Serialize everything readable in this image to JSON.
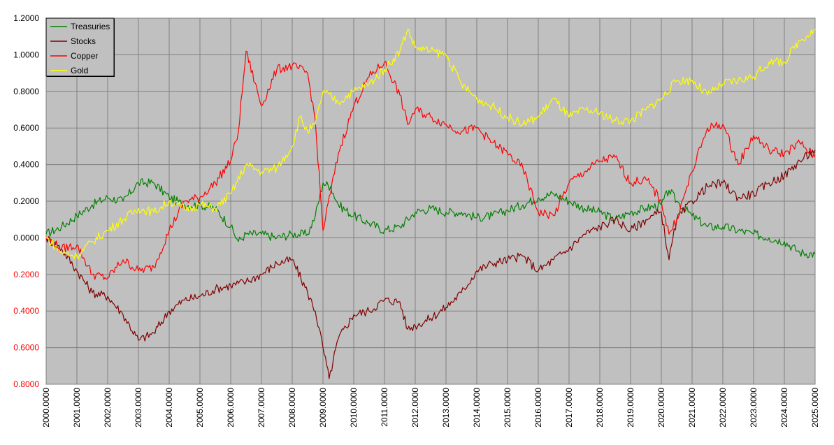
{
  "chart_data": {
    "type": "line",
    "ylim": [
      -0.8,
      1.2
    ],
    "xlim": [
      2000,
      2025
    ],
    "grid": true,
    "legend_placement": "top-left",
    "plot_background": "#c0c0c0",
    "y_ticks": [
      {
        "value": 1.2,
        "label": "1.2000",
        "color": "#000000"
      },
      {
        "value": 1.0,
        "label": "1.0000",
        "color": "#000000"
      },
      {
        "value": 0.8,
        "label": "0.8000",
        "color": "#000000"
      },
      {
        "value": 0.6,
        "label": "0.6000",
        "color": "#000000"
      },
      {
        "value": 0.4,
        "label": "0.4000",
        "color": "#000000"
      },
      {
        "value": 0.2,
        "label": "0.2000",
        "color": "#000000"
      },
      {
        "value": 0.0,
        "label": "0.0000",
        "color": "#000000"
      },
      {
        "value": -0.2,
        "label": "0.2000",
        "color": "#ff0000"
      },
      {
        "value": -0.4,
        "label": "0.4000",
        "color": "#ff0000"
      },
      {
        "value": -0.6,
        "label": "0.6000",
        "color": "#ff0000"
      },
      {
        "value": -0.8,
        "label": "0.8000",
        "color": "#ff0000"
      }
    ],
    "x_ticks": [
      {
        "value": 2000,
        "label": "2000.0000"
      },
      {
        "value": 2001,
        "label": "2001.0000"
      },
      {
        "value": 2002,
        "label": "2002.0000"
      },
      {
        "value": 2003,
        "label": "2003.0000"
      },
      {
        "value": 2004,
        "label": "2004.0000"
      },
      {
        "value": 2005,
        "label": "2005.0000"
      },
      {
        "value": 2006,
        "label": "2006.0000"
      },
      {
        "value": 2007,
        "label": "2007.0000"
      },
      {
        "value": 2008,
        "label": "2008.0000"
      },
      {
        "value": 2009,
        "label": "2009.0000"
      },
      {
        "value": 2010,
        "label": "2010.0000"
      },
      {
        "value": 2011,
        "label": "2011.0000"
      },
      {
        "value": 2012,
        "label": "2012.0000"
      },
      {
        "value": 2013,
        "label": "2013.0000"
      },
      {
        "value": 2014,
        "label": "2014.0000"
      },
      {
        "value": 2015,
        "label": "2015.0000"
      },
      {
        "value": 2016,
        "label": "2016.0000"
      },
      {
        "value": 2017,
        "label": "2017.0000"
      },
      {
        "value": 2018,
        "label": "2018.0000"
      },
      {
        "value": 2019,
        "label": "2019.0000"
      },
      {
        "value": 2020,
        "label": "2020.0000"
      },
      {
        "value": 2021,
        "label": "2021.0000"
      },
      {
        "value": 2022,
        "label": "2022.0000"
      },
      {
        "value": 2023,
        "label": "2023.0000"
      },
      {
        "value": 2024,
        "label": "2024.0000"
      },
      {
        "value": 2025,
        "label": "2025.0000"
      }
    ],
    "series": [
      {
        "name": "Treasuries",
        "color": "#008000",
        "x": [
          2000.0,
          2000.5,
          2001.0,
          2001.5,
          2002.0,
          2002.5,
          2003.0,
          2003.5,
          2004.0,
          2004.5,
          2005.0,
          2005.5,
          2006.0,
          2006.25,
          2006.5,
          2007.0,
          2007.5,
          2008.0,
          2008.5,
          2008.75,
          2009.0,
          2009.25,
          2009.5,
          2010.0,
          2010.5,
          2011.0,
          2011.5,
          2012.0,
          2012.5,
          2013.0,
          2013.5,
          2014.0,
          2014.5,
          2015.0,
          2015.5,
          2016.0,
          2016.5,
          2017.0,
          2017.5,
          2018.0,
          2018.5,
          2019.0,
          2019.5,
          2020.0,
          2020.25,
          2020.5,
          2021.0,
          2021.5,
          2022.0,
          2022.5,
          2023.0,
          2023.5,
          2024.0,
          2024.5,
          2025.0
        ],
        "y": [
          0.02,
          0.06,
          0.12,
          0.18,
          0.22,
          0.2,
          0.3,
          0.3,
          0.22,
          0.18,
          0.18,
          0.16,
          0.06,
          -0.02,
          0.02,
          0.02,
          0.0,
          0.02,
          0.02,
          0.12,
          0.3,
          0.28,
          0.18,
          0.12,
          0.08,
          0.04,
          0.06,
          0.14,
          0.16,
          0.14,
          0.14,
          0.11,
          0.12,
          0.15,
          0.18,
          0.22,
          0.24,
          0.2,
          0.16,
          0.14,
          0.1,
          0.14,
          0.16,
          0.18,
          0.26,
          0.2,
          0.12,
          0.06,
          0.06,
          0.04,
          0.02,
          0.0,
          -0.02,
          -0.08,
          -0.09
        ]
      },
      {
        "name": "Stocks",
        "color": "#800000",
        "x": [
          2000.0,
          2000.5,
          2001.0,
          2001.5,
          2002.0,
          2002.5,
          2003.0,
          2003.5,
          2004.0,
          2004.5,
          2005.0,
          2005.5,
          2006.0,
          2006.5,
          2007.0,
          2007.5,
          2008.0,
          2008.5,
          2008.75,
          2009.0,
          2009.2,
          2009.5,
          2010.0,
          2010.5,
          2011.0,
          2011.5,
          2011.75,
          2012.0,
          2012.5,
          2013.0,
          2013.5,
          2014.0,
          2014.5,
          2015.0,
          2015.5,
          2016.0,
          2016.5,
          2017.0,
          2017.5,
          2018.0,
          2018.5,
          2019.0,
          2019.5,
          2020.0,
          2020.25,
          2020.5,
          2021.0,
          2021.5,
          2022.0,
          2022.5,
          2023.0,
          2023.5,
          2024.0,
          2024.5,
          2025.0
        ],
        "y": [
          0.0,
          -0.06,
          -0.18,
          -0.3,
          -0.32,
          -0.42,
          -0.56,
          -0.52,
          -0.4,
          -0.34,
          -0.32,
          -0.28,
          -0.26,
          -0.24,
          -0.2,
          -0.14,
          -0.12,
          -0.3,
          -0.4,
          -0.6,
          -0.77,
          -0.55,
          -0.42,
          -0.4,
          -0.34,
          -0.35,
          -0.5,
          -0.48,
          -0.44,
          -0.38,
          -0.3,
          -0.18,
          -0.14,
          -0.12,
          -0.1,
          -0.18,
          -0.12,
          -0.06,
          0.02,
          0.06,
          0.1,
          0.04,
          0.1,
          0.14,
          -0.12,
          0.1,
          0.2,
          0.28,
          0.3,
          0.22,
          0.24,
          0.3,
          0.34,
          0.42,
          0.48
        ]
      },
      {
        "name": "Copper",
        "color": "#ff0000",
        "x": [
          2000.0,
          2000.5,
          2001.0,
          2001.5,
          2002.0,
          2002.5,
          2003.0,
          2003.5,
          2004.0,
          2004.5,
          2005.0,
          2005.5,
          2006.0,
          2006.25,
          2006.5,
          2007.0,
          2007.5,
          2008.0,
          2008.5,
          2008.75,
          2009.0,
          2009.5,
          2010.0,
          2010.5,
          2011.0,
          2011.5,
          2011.75,
          2012.0,
          2012.5,
          2013.0,
          2013.5,
          2014.0,
          2014.5,
          2015.0,
          2015.5,
          2016.0,
          2016.5,
          2017.0,
          2017.5,
          2018.0,
          2018.5,
          2019.0,
          2019.5,
          2020.0,
          2020.25,
          2020.5,
          2021.0,
          2021.5,
          2022.0,
          2022.5,
          2023.0,
          2023.5,
          2024.0,
          2024.5,
          2025.0
        ],
        "y": [
          0.0,
          -0.06,
          -0.04,
          -0.2,
          -0.22,
          -0.12,
          -0.18,
          -0.16,
          0.04,
          0.2,
          0.22,
          0.3,
          0.42,
          0.58,
          1.02,
          0.72,
          0.92,
          0.94,
          0.9,
          0.64,
          0.04,
          0.46,
          0.72,
          0.88,
          0.96,
          0.78,
          0.62,
          0.7,
          0.66,
          0.62,
          0.58,
          0.6,
          0.52,
          0.46,
          0.38,
          0.14,
          0.12,
          0.3,
          0.36,
          0.42,
          0.44,
          0.3,
          0.32,
          0.2,
          0.02,
          0.1,
          0.36,
          0.6,
          0.62,
          0.4,
          0.56,
          0.48,
          0.46,
          0.52,
          0.44
        ]
      },
      {
        "name": "Gold",
        "color": "#ffff00",
        "x": [
          2000.0,
          2000.5,
          2001.0,
          2001.5,
          2002.0,
          2002.5,
          2003.0,
          2003.5,
          2004.0,
          2004.5,
          2005.0,
          2005.5,
          2006.0,
          2006.5,
          2007.0,
          2007.5,
          2008.0,
          2008.25,
          2008.5,
          2008.75,
          2009.0,
          2009.5,
          2010.0,
          2010.5,
          2011.0,
          2011.5,
          2011.75,
          2012.0,
          2012.5,
          2013.0,
          2013.5,
          2014.0,
          2014.5,
          2015.0,
          2015.5,
          2016.0,
          2016.5,
          2017.0,
          2017.5,
          2018.0,
          2018.5,
          2019.0,
          2019.5,
          2020.0,
          2020.5,
          2021.0,
          2021.5,
          2022.0,
          2022.5,
          2023.0,
          2023.5,
          2024.0,
          2024.5,
          2025.0
        ],
        "y": [
          0.0,
          -0.08,
          -0.1,
          -0.02,
          0.04,
          0.1,
          0.16,
          0.14,
          0.2,
          0.16,
          0.18,
          0.16,
          0.24,
          0.4,
          0.36,
          0.38,
          0.5,
          0.66,
          0.58,
          0.62,
          0.8,
          0.74,
          0.8,
          0.84,
          0.92,
          1.02,
          1.14,
          1.04,
          1.02,
          1.0,
          0.84,
          0.76,
          0.72,
          0.66,
          0.62,
          0.66,
          0.76,
          0.66,
          0.7,
          0.68,
          0.64,
          0.64,
          0.7,
          0.76,
          0.86,
          0.86,
          0.78,
          0.84,
          0.86,
          0.88,
          0.96,
          0.96,
          1.08,
          1.14
        ]
      }
    ]
  }
}
